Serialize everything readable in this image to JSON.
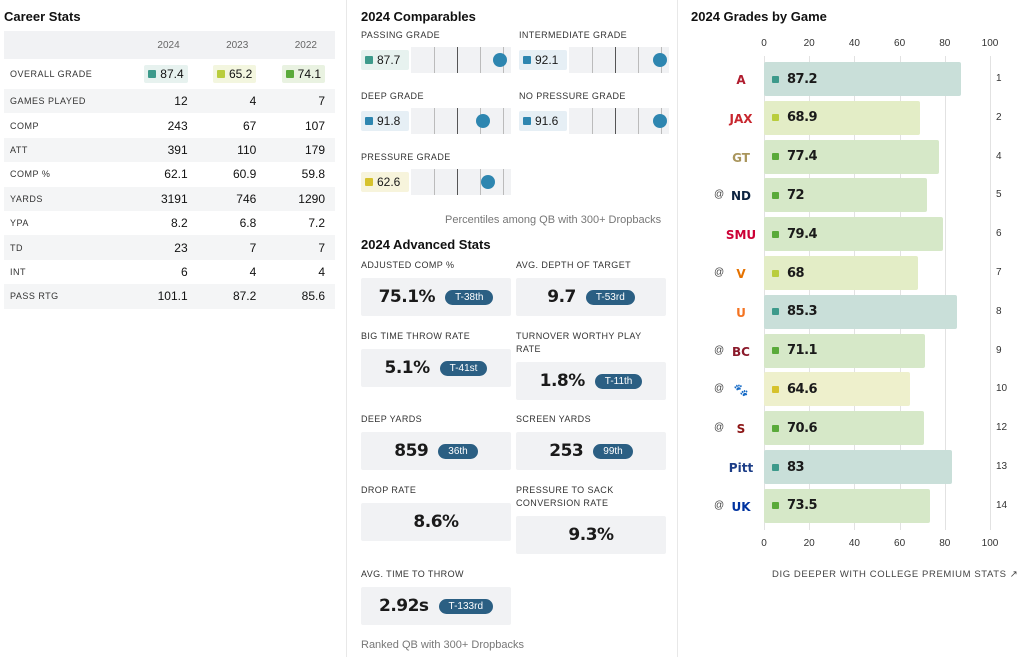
{
  "career": {
    "title": "Career Stats",
    "years": [
      "2024",
      "2023",
      "2022"
    ],
    "grade_row": {
      "label": "OVERALL GRADE",
      "values": [
        {
          "v": "87.4",
          "color": "#3d9a8b",
          "bg": "#e7f2ef"
        },
        {
          "v": "65.2",
          "color": "#b9cd3c",
          "bg": "#f3f6df"
        },
        {
          "v": "74.1",
          "color": "#5aaa3a",
          "bg": "#e9f2e1"
        }
      ]
    },
    "rows": [
      {
        "label": "GAMES PLAYED",
        "v": [
          "12",
          "4",
          "7"
        ]
      },
      {
        "label": "COMP",
        "v": [
          "243",
          "67",
          "107"
        ]
      },
      {
        "label": "ATT",
        "v": [
          "391",
          "110",
          "179"
        ]
      },
      {
        "label": "COMP %",
        "v": [
          "62.1",
          "60.9",
          "59.8"
        ]
      },
      {
        "label": "YARDS",
        "v": [
          "3191",
          "746",
          "1290"
        ]
      },
      {
        "label": "YPA",
        "v": [
          "8.2",
          "6.8",
          "7.2"
        ]
      },
      {
        "label": "TD",
        "v": [
          "23",
          "7",
          "7"
        ]
      },
      {
        "label": "INT",
        "v": [
          "6",
          "4",
          "4"
        ]
      },
      {
        "label": "PASS RTG",
        "v": [
          "101.1",
          "87.2",
          "85.6"
        ]
      }
    ]
  },
  "comparables": {
    "title": "2024 Comparables",
    "items": [
      {
        "label": "PASSING GRADE",
        "value": "87.7",
        "color": "#3d9a8b",
        "bg": "#e7f2ef",
        "percentile": 0.97
      },
      {
        "label": "INTERMEDIATE GRADE",
        "value": "92.1",
        "color": "#2e86b0",
        "bg": "#e6eff5",
        "percentile": 0.99
      },
      {
        "label": "DEEP GRADE",
        "value": "91.8",
        "color": "#2e86b0",
        "bg": "#e6eff5",
        "percentile": 0.78
      },
      {
        "label": "NO PRESSURE GRADE",
        "value": "91.6",
        "color": "#2e86b0",
        "bg": "#e6eff5",
        "percentile": 0.99
      },
      {
        "label": "PRESSURE GRADE",
        "value": "62.6",
        "color": "#d6c22c",
        "bg": "#f7f4dc",
        "percentile": 0.84
      }
    ],
    "note": "Percentiles among QB with 300+ Dropbacks"
  },
  "advanced": {
    "title": "2024 Advanced Stats",
    "items": [
      {
        "label": "ADJUSTED COMP %",
        "value": "75.1%",
        "rank": "T-38th"
      },
      {
        "label": "AVG. DEPTH OF TARGET",
        "value": "9.7",
        "rank": "T-53rd"
      },
      {
        "label": "BIG TIME THROW RATE",
        "value": "5.1%",
        "rank": "T-41st"
      },
      {
        "label": "TURNOVER WORTHY PLAY RATE",
        "value": "1.8%",
        "rank": "T-11th"
      },
      {
        "label": "DEEP YARDS",
        "value": "859",
        "rank": "36th"
      },
      {
        "label": "SCREEN YARDS",
        "value": "253",
        "rank": "99th"
      },
      {
        "label": "DROP RATE",
        "value": "8.6%",
        "rank": ""
      },
      {
        "label": "PRESSURE TO SACK CONVERSION RATE",
        "value": "9.3%",
        "rank": ""
      },
      {
        "label": "AVG. TIME TO THROW",
        "value": "2.92s",
        "rank": "T-133rd"
      }
    ],
    "note": "Ranked QB with 300+ Dropbacks"
  },
  "games": {
    "title": "2024 Grades by Game",
    "axis": [
      "0",
      "20",
      "40",
      "60",
      "80",
      "100"
    ],
    "rows": [
      {
        "at": "",
        "logo": "A",
        "logo_color": "#b01c2e",
        "grade": "87.2",
        "value": 87.2,
        "color": "#3d9a8b",
        "bg": "#c9dfd9",
        "week": "1"
      },
      {
        "at": "",
        "logo": "JAX",
        "logo_color": "#c8262e",
        "grade": "68.9",
        "value": 68.9,
        "color": "#b9cd3c",
        "bg": "#e3edc6",
        "week": "2"
      },
      {
        "at": "",
        "logo": "GT",
        "logo_color": "#a9955c",
        "grade": "77.4",
        "value": 77.4,
        "color": "#5aaa3a",
        "bg": "#d6e8c8",
        "week": "4"
      },
      {
        "at": "@",
        "logo": "ND",
        "logo_color": "#0c2340",
        "grade": "72",
        "value": 72,
        "color": "#5aaa3a",
        "bg": "#d6e8c8",
        "week": "5"
      },
      {
        "at": "",
        "logo": "SMU",
        "logo_color": "#cc0035",
        "grade": "79.4",
        "value": 79.4,
        "color": "#5aaa3a",
        "bg": "#d6e8c8",
        "week": "6"
      },
      {
        "at": "@",
        "logo": "V",
        "logo_color": "#e57200",
        "grade": "68",
        "value": 68,
        "color": "#b9cd3c",
        "bg": "#e3edc6",
        "week": "7"
      },
      {
        "at": "",
        "logo": "U",
        "logo_color": "#f47321",
        "grade": "85.3",
        "value": 85.3,
        "color": "#3d9a8b",
        "bg": "#c9dfd9",
        "week": "8"
      },
      {
        "at": "@",
        "logo": "BC",
        "logo_color": "#8b1a2b",
        "grade": "71.1",
        "value": 71.1,
        "color": "#5aaa3a",
        "bg": "#d6e8c8",
        "week": "9"
      },
      {
        "at": "@",
        "logo": "🐾",
        "logo_color": "#f56600",
        "grade": "64.6",
        "value": 64.6,
        "color": "#d6c22c",
        "bg": "#eef0cc",
        "week": "10"
      },
      {
        "at": "@",
        "logo": "S",
        "logo_color": "#8c1515",
        "grade": "70.6",
        "value": 70.6,
        "color": "#5aaa3a",
        "bg": "#d6e8c8",
        "week": "12"
      },
      {
        "at": "",
        "logo": "Pitt",
        "logo_color": "#1c3d87",
        "grade": "83",
        "value": 83,
        "color": "#3d9a8b",
        "bg": "#c9dfd9",
        "week": "13"
      },
      {
        "at": "@",
        "logo": "UK",
        "logo_color": "#0033a0",
        "grade": "73.5",
        "value": 73.5,
        "color": "#5aaa3a",
        "bg": "#d6e8c8",
        "week": "14"
      }
    ],
    "link": "DIG DEEPER WITH COLLEGE PREMIUM STATS ↗"
  }
}
